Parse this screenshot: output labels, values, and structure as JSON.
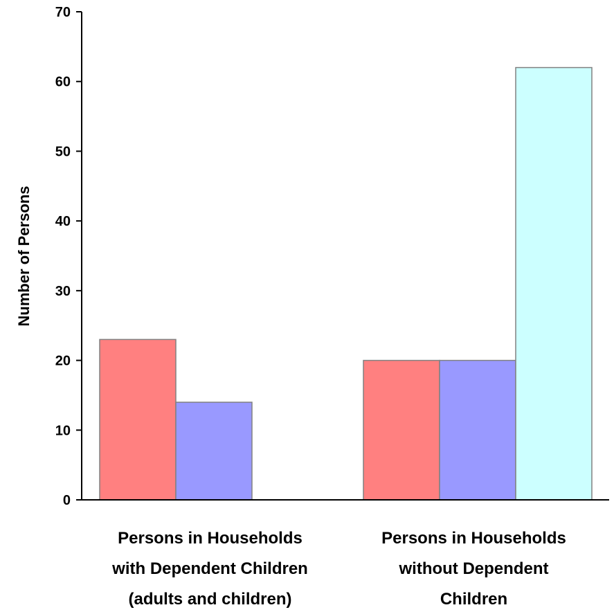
{
  "chart_data": {
    "type": "bar",
    "title": "",
    "xlabel": "",
    "ylabel": "Number of Persons",
    "ylim": [
      0,
      70
    ],
    "yticks": [
      "0",
      "10",
      "20",
      "30",
      "40",
      "50",
      "60",
      "70"
    ],
    "grid": false,
    "legend": "none",
    "categories": [
      [
        "Persons in Households",
        "with Dependent Children",
        "(adults and children)"
      ],
      [
        "Persons in Households",
        "without Dependent",
        "Children"
      ]
    ],
    "series": [
      {
        "color": "#ff8080",
        "values": [
          23,
          20
        ]
      },
      {
        "color": "#9999ff",
        "values": [
          14,
          20
        ]
      },
      {
        "color": "#ccffff",
        "values": [
          null,
          62
        ]
      }
    ]
  }
}
